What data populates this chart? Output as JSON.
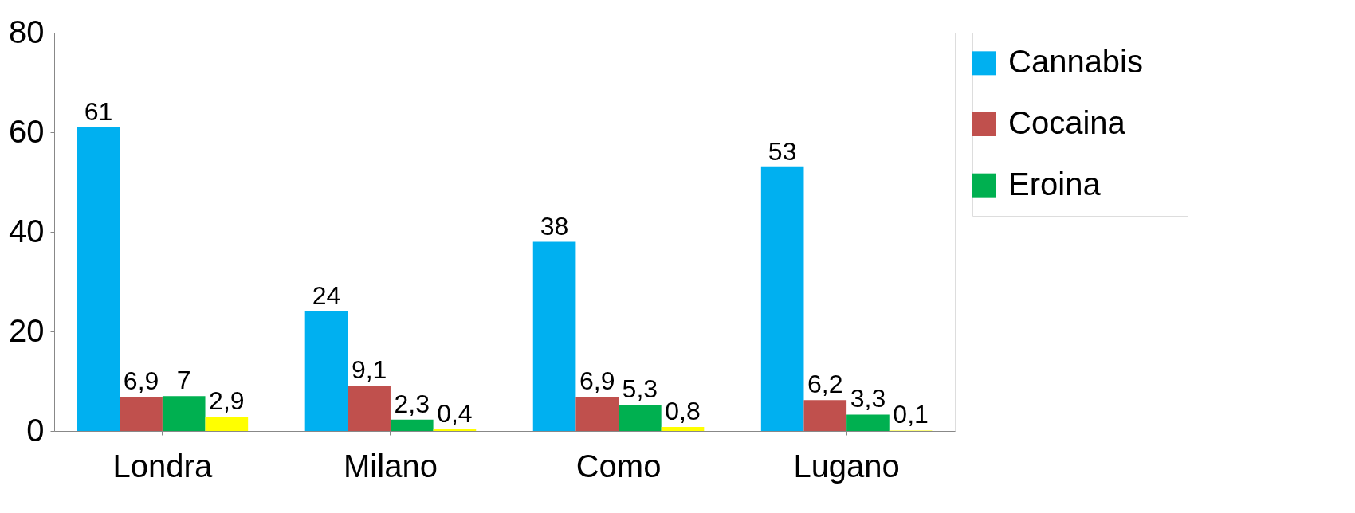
{
  "chart_data": {
    "type": "bar",
    "categories": [
      "Londra",
      "Milano",
      "Como",
      "Lugano"
    ],
    "series": [
      {
        "name": "Cannabis",
        "color": "#00b0f0",
        "values": [
          61,
          24,
          38,
          53
        ],
        "value_labels": [
          "61",
          "24",
          "38",
          "53"
        ]
      },
      {
        "name": "Cocaina",
        "color": "#c0504d",
        "values": [
          6.9,
          9.1,
          6.9,
          6.2
        ],
        "value_labels": [
          "6,9",
          "9,1",
          "6,9",
          "6,2"
        ]
      },
      {
        "name": "Eroina",
        "color": "#00b050",
        "values": [
          7,
          2.3,
          5.3,
          3.3
        ],
        "value_labels": [
          "7",
          "2,3",
          "5,3",
          "3,3"
        ]
      },
      {
        "color": "#ffff00",
        "values": [
          2.9,
          0.4,
          0.8,
          0.1
        ],
        "value_labels": [
          "2,9",
          "0,4",
          "0,8",
          "0,1"
        ]
      }
    ],
    "ylim": [
      0,
      80
    ],
    "yticks": [
      0,
      20,
      40,
      60,
      80
    ],
    "grid": false,
    "legend": "right"
  }
}
